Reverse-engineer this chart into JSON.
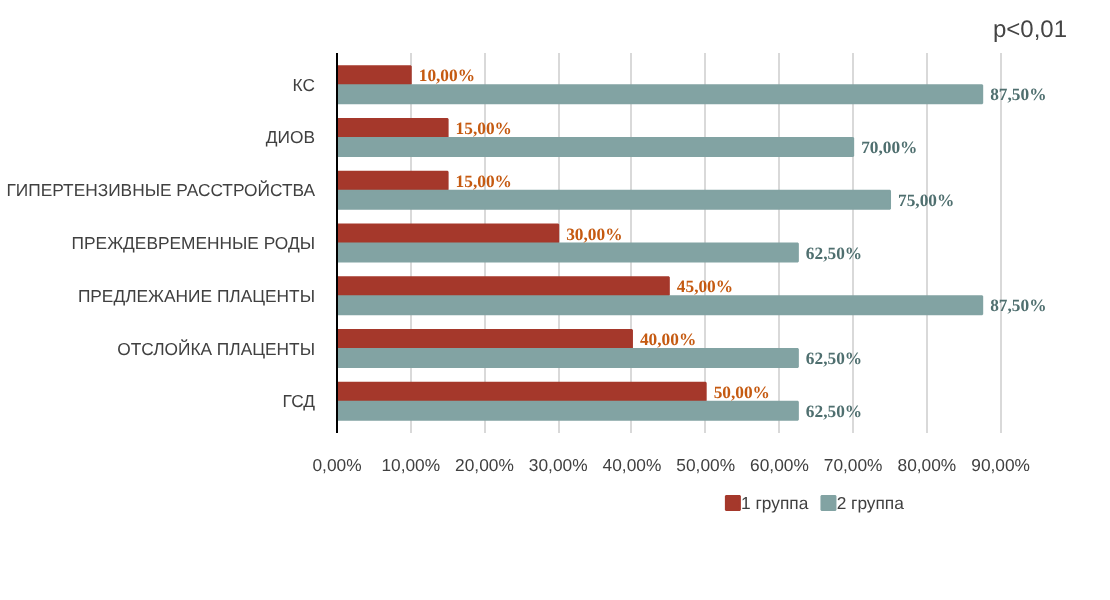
{
  "chart_data": {
    "type": "bar",
    "orientation": "horizontal",
    "categories": [
      "КС",
      "ДИОВ",
      "ГИПЕРТЕНЗИВНЫЕ РАССТРОЙСТВА",
      "ПРЕЖДЕВРЕМЕННЫЕ РОДЫ",
      "ПРЕДЛЕЖАНИЕ ПЛАЦЕНТЫ",
      "ОТСЛОЙКА ПЛАЦЕНТЫ",
      "ГСД"
    ],
    "series": [
      {
        "name": "1 группа",
        "color": "#a5382b",
        "values": [
          10,
          15,
          15,
          30,
          45,
          40,
          50
        ],
        "value_labels": [
          "10,00%",
          "15,00%",
          "15,00%",
          "30,00%",
          "45,00%",
          "40,00%",
          "50,00%"
        ]
      },
      {
        "name": "2 группа",
        "color": "#82a3a3",
        "values": [
          87.5,
          70,
          75,
          62.5,
          87.5,
          62.5,
          62.5
        ],
        "value_labels": [
          "87,50%",
          "70,00%",
          "75,00%",
          "62,50%",
          "87,50%",
          "62,50%",
          "62,50%"
        ]
      }
    ],
    "xlim": [
      0,
      90
    ],
    "xticks": [
      {
        "value": 0,
        "label": "0,00%"
      },
      {
        "value": 10,
        "label": "10,00%"
      },
      {
        "value": 20,
        "label": "20,00%"
      },
      {
        "value": 30,
        "label": "30,00%"
      },
      {
        "value": 40,
        "label": "40,00%"
      },
      {
        "value": 50,
        "label": "50,00%"
      },
      {
        "value": 60,
        "label": "60,00%"
      },
      {
        "value": 70,
        "label": "70,00%"
      },
      {
        "value": 80,
        "label": "80,00%"
      },
      {
        "value": 90,
        "label": "90,00%"
      }
    ],
    "grid": "x",
    "legend": "bottom",
    "annotations": [
      "p<0,01"
    ]
  }
}
